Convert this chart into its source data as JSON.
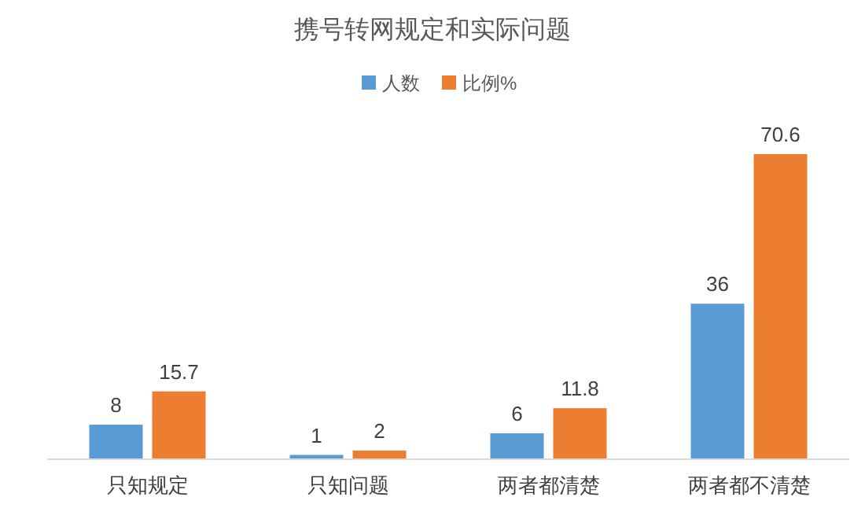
{
  "chart_data": {
    "type": "bar",
    "title": "携号转网规定和实际问题",
    "categories": [
      "只知规定",
      "只知问题",
      "两者都清楚",
      "两者都不清楚"
    ],
    "series": [
      {
        "name": "人数",
        "color": "#5b9bd5",
        "values": [
          8,
          1,
          6,
          36
        ]
      },
      {
        "name": "比例%",
        "color": "#ed7d31",
        "values": [
          15.7,
          2,
          11.8,
          70.6
        ]
      }
    ],
    "data_labels": true,
    "legend": "top"
  }
}
